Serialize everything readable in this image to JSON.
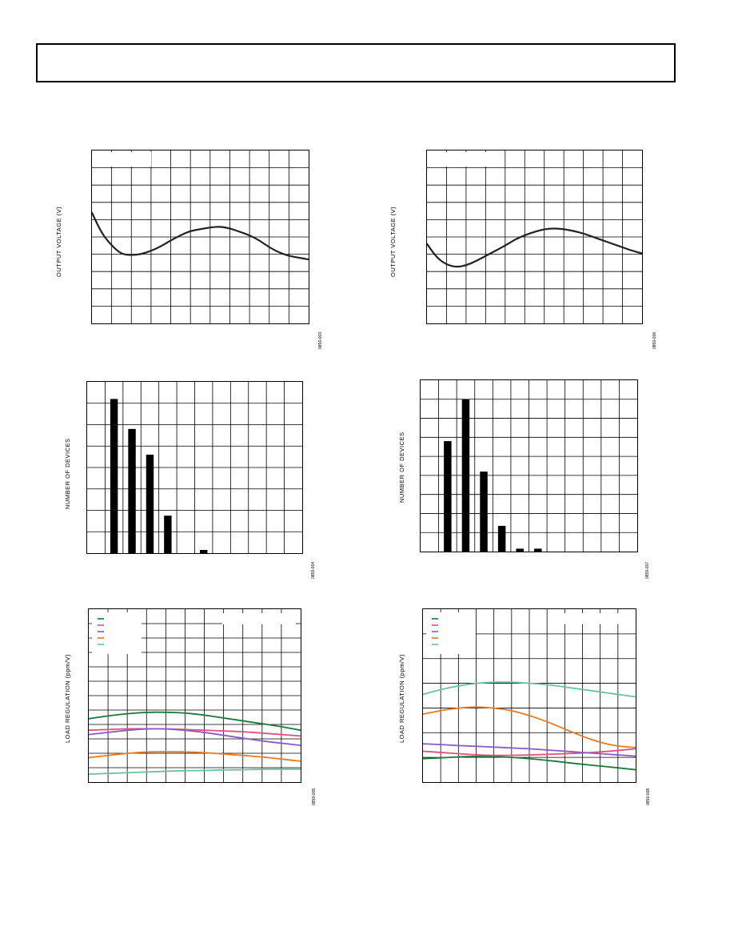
{
  "header": {
    "text": ""
  },
  "charts": [
    {
      "id": "c1",
      "type": "line",
      "ylabel": "OUTPUT VOLTAGE (V)",
      "fig_id": "0859-003",
      "grid": {
        "cols": 11,
        "rows": 10
      },
      "chart_data": {
        "type": "line",
        "x": [
          0,
          0.5,
          1,
          1.5,
          2,
          2.5,
          3,
          3.5,
          4,
          4.5,
          5,
          5.5,
          6,
          6.5,
          7,
          7.5,
          8,
          8.5,
          9,
          9.5,
          10,
          10.5,
          11
        ],
        "series": [
          {
            "color": "#222222",
            "values": [
              6.4,
              5.2,
              4.5,
              4.0,
              3.95,
              4.0,
              4.2,
              4.45,
              4.8,
              5.1,
              5.35,
              5.45,
              5.55,
              5.6,
              5.5,
              5.3,
              5.1,
              4.8,
              4.4,
              4.1,
              3.9,
              3.8,
              3.7
            ]
          }
        ],
        "xlim": [
          0,
          11
        ],
        "ylim": [
          0,
          10
        ],
        "grid": true
      }
    },
    {
      "id": "c2",
      "type": "line",
      "ylabel": "OUTPUT VOLTAGE (V)",
      "fig_id": "0859-006",
      "grid": {
        "cols": 11,
        "rows": 10
      },
      "chart_data": {
        "type": "line",
        "x": [
          0,
          0.5,
          1,
          1.5,
          2,
          2.5,
          3,
          3.5,
          4,
          4.5,
          5,
          5.5,
          6,
          6.5,
          7,
          7.5,
          8,
          8.5,
          9,
          9.5,
          10,
          10.5,
          11
        ],
        "series": [
          {
            "color": "#222222",
            "values": [
              4.6,
              3.8,
              3.4,
              3.25,
              3.35,
              3.6,
              3.9,
              4.2,
              4.5,
              4.85,
              5.1,
              5.3,
              5.45,
              5.5,
              5.45,
              5.35,
              5.2,
              5.0,
              4.8,
              4.6,
              4.4,
              4.2,
              4.05
            ]
          }
        ],
        "xlim": [
          0,
          11
        ],
        "ylim": [
          0,
          10
        ],
        "grid": true
      }
    },
    {
      "id": "c3",
      "type": "bar",
      "ylabel": "NUMBER OF DEVICES",
      "fig_id": "0859-004",
      "grid": {
        "cols": 12,
        "rows": 8
      },
      "chart_data": {
        "type": "bar",
        "categories": [
          "1",
          "2",
          "3",
          "4",
          "5",
          "6",
          "7",
          "8",
          "9",
          "10",
          "11",
          "12"
        ],
        "values": [
          0,
          7.2,
          5.8,
          4.6,
          1.75,
          0,
          0.15,
          0,
          0,
          0,
          0,
          0
        ],
        "ylim": [
          0,
          8
        ],
        "grid": true
      }
    },
    {
      "id": "c4",
      "type": "bar",
      "ylabel": "NUMBER OF DEVICES",
      "fig_id": "0859-007",
      "grid": {
        "cols": 12,
        "rows": 9
      },
      "chart_data": {
        "type": "bar",
        "categories": [
          "1",
          "2",
          "3",
          "4",
          "5",
          "6",
          "7",
          "8",
          "9",
          "10",
          "11",
          "12"
        ],
        "values": [
          0,
          5.8,
          8.0,
          4.2,
          1.35,
          0.15,
          0.15,
          0,
          0,
          0,
          0,
          0
        ],
        "ylim": [
          0,
          9
        ],
        "grid": true
      }
    },
    {
      "id": "c5",
      "type": "line",
      "ylabel": "LOAD REGULATION (ppm/V)",
      "fig_id": "0859-005",
      "grid": {
        "cols": 11,
        "rows": 12
      },
      "legend": {
        "swatches": [
          "#1a7a3a",
          "#e0507a",
          "#8a5ac8",
          "#e87a20",
          "#6ac49a"
        ],
        "placement": "top-left"
      },
      "chart_data": {
        "type": "line",
        "x": [
          0,
          1,
          2,
          3,
          4,
          5,
          6,
          7,
          8,
          9,
          10,
          11
        ],
        "series": [
          {
            "color": "#1a7a3a",
            "values": [
              4.4,
              4.6,
              4.75,
              4.85,
              4.85,
              4.8,
              4.65,
              4.45,
              4.25,
              4.05,
              3.85,
              3.6
            ]
          },
          {
            "color": "#e0507a",
            "values": [
              3.6,
              3.65,
              3.7,
              3.7,
              3.7,
              3.65,
              3.6,
              3.55,
              3.5,
              3.4,
              3.3,
              3.2
            ]
          },
          {
            "color": "#8a5ac8",
            "values": [
              3.3,
              3.45,
              3.6,
              3.7,
              3.7,
              3.6,
              3.45,
              3.25,
              3.05,
              2.85,
              2.7,
              2.55
            ]
          },
          {
            "color": "#e87a20",
            "values": [
              1.7,
              1.85,
              2.0,
              2.1,
              2.1,
              2.1,
              2.05,
              1.95,
              1.85,
              1.75,
              1.6,
              1.45
            ]
          },
          {
            "color": "#6ac49a",
            "values": [
              0.55,
              0.6,
              0.65,
              0.7,
              0.75,
              0.8,
              0.8,
              0.85,
              0.85,
              0.9,
              0.9,
              0.9
            ]
          }
        ],
        "xlim": [
          0,
          11
        ],
        "ylim": [
          0,
          12
        ],
        "grid": true
      }
    },
    {
      "id": "c6",
      "type": "line",
      "ylabel": "LOAD REGULATION (ppm/V)",
      "fig_id": "0859-008",
      "grid": {
        "cols": 12,
        "rows": 7
      },
      "legend": {
        "swatches": [
          "#1a7a3a",
          "#e0507a",
          "#8a5ac8",
          "#e87a20",
          "#6ac49a"
        ],
        "placement": "top-left"
      },
      "chart_data": {
        "type": "line",
        "x": [
          0,
          1,
          2,
          3,
          4,
          5,
          6,
          7,
          8,
          9,
          10,
          11,
          12
        ],
        "series": [
          {
            "color": "#1a7a3a",
            "values": [
              0.95,
              0.98,
              1.02,
              1.05,
              1.04,
              1.0,
              0.95,
              0.88,
              0.8,
              0.72,
              0.65,
              0.58,
              0.5
            ]
          },
          {
            "color": "#e0507a",
            "values": [
              1.25,
              1.2,
              1.15,
              1.1,
              1.08,
              1.08,
              1.1,
              1.12,
              1.15,
              1.18,
              1.22,
              1.28,
              1.35
            ]
          },
          {
            "color": "#8a5ac8",
            "values": [
              1.55,
              1.52,
              1.48,
              1.45,
              1.42,
              1.38,
              1.35,
              1.3,
              1.25,
              1.2,
              1.15,
              1.1,
              1.05
            ]
          },
          {
            "color": "#e87a20",
            "values": [
              2.75,
              2.9,
              3.0,
              3.05,
              3.0,
              2.9,
              2.7,
              2.45,
              2.15,
              1.85,
              1.6,
              1.45,
              1.4
            ]
          },
          {
            "color": "#6ac49a",
            "values": [
              3.55,
              3.75,
              3.9,
              4.0,
              4.05,
              4.05,
              4.0,
              3.95,
              3.85,
              3.75,
              3.65,
              3.55,
              3.45
            ]
          }
        ],
        "xlim": [
          0,
          12
        ],
        "ylim": [
          0,
          7
        ],
        "grid": true
      }
    }
  ]
}
